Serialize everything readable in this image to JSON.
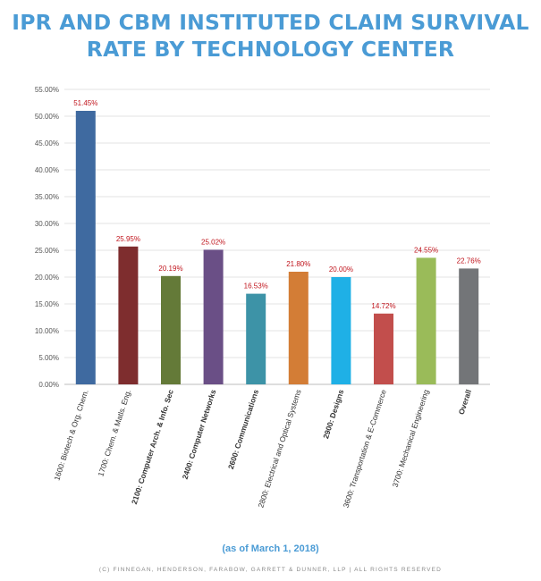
{
  "title_lines": [
    "IPR AND CBM INSTITUTED CLAIM SURVIVAL",
    "RATE BY TECHNOLOGY CENTER"
  ],
  "note": "(as of March 1, 2018)",
  "copyright": "(C) FINNEGAN, HENDERSON, FARABOW, GARRETT & DUNNER, LLP | ALL RIGHTS RESERVED",
  "chart_data": {
    "type": "bar",
    "categories": [
      "1600: Biotech & Org. Chem.",
      "1700: Chem. & Matls. Eng.",
      "2100: Computer Arch. & Info. Sec",
      "2400: Computer Networks",
      "2600: Communications",
      "2800: Electrical and Optical Systems",
      "2900: Designs",
      "3600: Transportation & E-Commerce",
      "3700: Mechanical Engineering",
      "Overall"
    ],
    "values": [
      51.45,
      25.95,
      20.19,
      25.02,
      16.53,
      21.8,
      20.0,
      14.72,
      24.55,
      22.76
    ],
    "bar_heights": [
      51.0,
      25.7,
      20.2,
      25.1,
      16.9,
      21.0,
      20.0,
      13.2,
      23.6,
      21.6
    ],
    "data_labels": [
      "51.45%",
      "25.95%",
      "20.19%",
      "25.02%",
      "16.53%",
      "21.80%",
      "20.00%",
      "14.72%",
      "24.55%",
      "22.76%"
    ],
    "bold_categories": [
      2,
      3,
      4,
      6,
      9
    ],
    "colors": [
      "#3f6aa0",
      "#7e2d2e",
      "#647a38",
      "#6a4f86",
      "#3d93a7",
      "#d37d36",
      "#1fb0e6",
      "#c24e4c",
      "#9abb59",
      "#737578"
    ],
    "label_color": "#c0141c",
    "ylim": [
      0,
      55
    ],
    "yticks": [
      0,
      5,
      10,
      15,
      20,
      25,
      30,
      35,
      40,
      45,
      50,
      55
    ],
    "ytick_labels": [
      "0.00%",
      "5.00%",
      "10.00%",
      "15.00%",
      "20.00%",
      "25.00%",
      "30.00%",
      "35.00%",
      "40.00%",
      "45.00%",
      "50.00%",
      "55.00%"
    ],
    "grid": true,
    "xlabel": "",
    "ylabel": ""
  }
}
